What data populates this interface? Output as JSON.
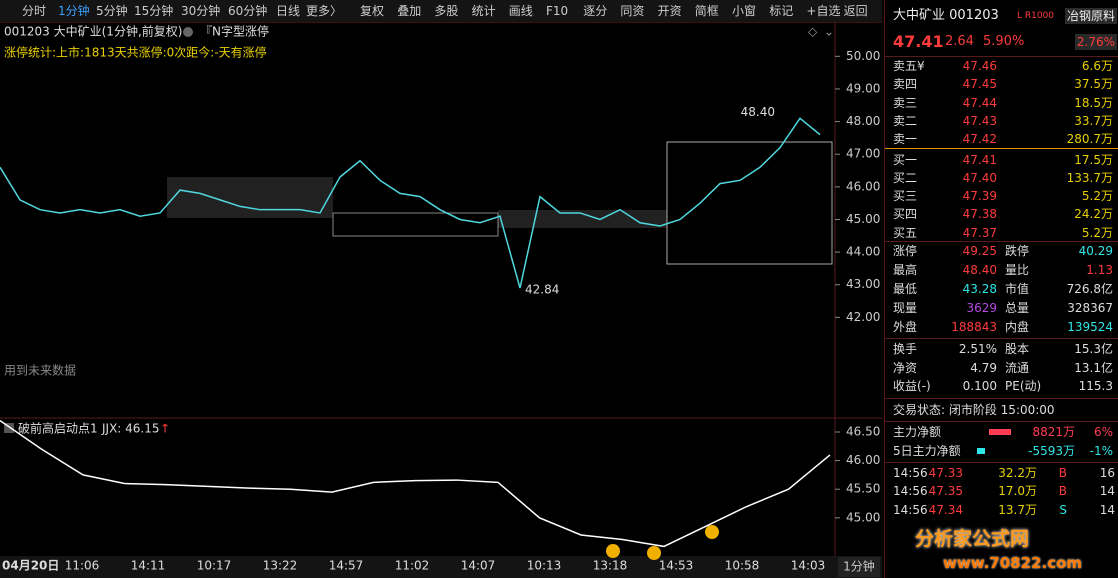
{
  "toolbar": {
    "periods": [
      "分时",
      "1分钟",
      "5分钟",
      "15分钟",
      "30分钟",
      "60分钟",
      "日线",
      "更多〉"
    ],
    "active": 1,
    "buttons": [
      "复权",
      "叠加",
      "多股",
      "统计",
      "画线",
      "F10",
      "逐分",
      "同资",
      "开资",
      "简框",
      "小窗",
      "标记",
      "+自选",
      "返回"
    ]
  },
  "chart_header": {
    "code_title": "001203 大中矿业(1分钟,前复权)",
    "indicator": "『N字型涨停",
    "stats": "涨停统计:上市:1813天共涨停:0次距今:-天有涨停",
    "future_note": "用到未来数据"
  },
  "main_chart": {
    "type": "line",
    "color": "#4fd8e0",
    "values": [
      46.6,
      45.6,
      45.3,
      45.2,
      45.3,
      45.2,
      45.3,
      45.1,
      45.2,
      45.9,
      45.8,
      45.6,
      45.4,
      45.3,
      45.3,
      45.3,
      45.2,
      46.3,
      46.8,
      46.2,
      45.8,
      45.7,
      45.3,
      45.0,
      44.9,
      45.1,
      42.9,
      45.7,
      45.2,
      45.2,
      45.0,
      45.3,
      44.9,
      44.8,
      45.0,
      45.5,
      46.1,
      46.2,
      46.6,
      47.2,
      48.1,
      47.6
    ],
    "ylim": [
      39.1,
      50.5
    ],
    "yticks": [
      {
        "value": 50,
        "label": "50.00"
      },
      {
        "value": 49,
        "label": "49.00"
      },
      {
        "value": 48,
        "label": "48.00"
      },
      {
        "value": 47,
        "label": "47.00"
      },
      {
        "value": 46,
        "label": "46.00"
      },
      {
        "value": 45,
        "label": "45.00"
      },
      {
        "value": 44,
        "label": "44.00"
      },
      {
        "value": 43,
        "label": "43.00"
      },
      {
        "value": 42,
        "label": "42.00"
      }
    ],
    "annotations": [
      {
        "value": 48.4,
        "label": "48.40"
      },
      {
        "value": 42.84,
        "label": "42.84"
      }
    ]
  },
  "indicator_chart": {
    "type": "line",
    "title": "破前高启动点1",
    "value_label": "JJX: 46.15",
    "arrow": "↑",
    "color": "#ffffff",
    "values": [
      46.7,
      46.2,
      45.75,
      45.6,
      45.58,
      45.55,
      45.52,
      45.5,
      45.45,
      45.62,
      45.65,
      45.66,
      45.62,
      45.0,
      44.7,
      44.62,
      44.5,
      44.85,
      45.2,
      45.5,
      46.1
    ],
    "ylim": [
      44.35,
      46.71
    ],
    "yticks": [
      {
        "value": 46.5,
        "label": "46.50"
      },
      {
        "value": 46,
        "label": "46.00"
      },
      {
        "value": 45.5,
        "label": "45.50"
      },
      {
        "value": 45,
        "label": "45.00"
      }
    ]
  },
  "x_axis": {
    "labels": [
      "04月20日",
      "11:06",
      "14:11",
      "10:17",
      "13:22",
      "14:57",
      "11:02",
      "14:07",
      "10:13",
      "13:18",
      "14:53",
      "10:58",
      "14:03"
    ],
    "period_button": "1分钟"
  },
  "quote": {
    "name": "大中矿业 001203",
    "flag": "L R1000",
    "sector": "冶钢原料",
    "price": "47.41",
    "change": "2.64",
    "change_pct": "5.90%",
    "sector_pct": "2.76%"
  },
  "order_book": {
    "sell": [
      [
        "卖五¥",
        "47.46",
        "6.6万"
      ],
      [
        "卖四",
        "47.45",
        "37.5万"
      ],
      [
        "卖三",
        "47.44",
        "18.5万"
      ],
      [
        "卖二",
        "47.43",
        "33.7万"
      ],
      [
        "卖一",
        "47.42",
        "280.7万"
      ]
    ],
    "buy": [
      [
        "买一",
        "47.41",
        "17.5万"
      ],
      [
        "买二",
        "47.40",
        "133.7万"
      ],
      [
        "买三",
        "47.39",
        "5.2万"
      ],
      [
        "买四",
        "47.38",
        "24.2万"
      ],
      [
        "买五",
        "47.37",
        "5.2万"
      ]
    ]
  },
  "stats": [
    {
      "cells": [
        "涨停",
        "49.25",
        "跌停",
        "40.29"
      ],
      "colors": [
        "#ff3b3b",
        "#2ee6e6"
      ]
    },
    {
      "cells": [
        "最高",
        "48.40",
        "量比",
        "1.13"
      ],
      "colors": [
        "#ff3b3b",
        "#ff3b3b"
      ]
    },
    {
      "cells": [
        "最低",
        "43.28",
        "市值",
        "726.8亿"
      ],
      "colors": [
        "#2ee6e6",
        "#dddddd"
      ]
    },
    {
      "cells": [
        "现量",
        "3629",
        "总量",
        "328367"
      ],
      "colors": [
        "#b44ae0",
        "#dddddd"
      ]
    },
    {
      "cells": [
        "外盘",
        "188843",
        "内盘",
        "139524"
      ],
      "colors": [
        "#ff3b3b",
        "#2ee6e6"
      ]
    }
  ],
  "fundamentals": [
    [
      "换手",
      "2.51%",
      "股本",
      "15.3亿"
    ],
    [
      "净资",
      "4.79",
      "流通",
      "13.1亿"
    ],
    [
      "收益(-)",
      "0.100",
      "PE(动)",
      "115.3"
    ]
  ],
  "status": "交易状态: 闭市阶段 15:00:00",
  "fund_flow": [
    {
      "label": "主力净额",
      "amount": "8821万",
      "pct": "6%",
      "color": "#ff3b55"
    },
    {
      "label": "5日主力净额",
      "amount": "-5593万",
      "pct": "-1%",
      "color": "#2ee6e6"
    }
  ],
  "trades": [
    [
      "14:56",
      "47.33",
      "32.2万",
      "B",
      "16"
    ],
    [
      "14:56",
      "47.35",
      "17.0万",
      "B",
      "14"
    ],
    [
      "14:56",
      "47.34",
      "13.7万",
      "S",
      "14"
    ]
  ],
  "logo": {
    "name": "分析家公式网",
    "url": "www.70822.com"
  }
}
